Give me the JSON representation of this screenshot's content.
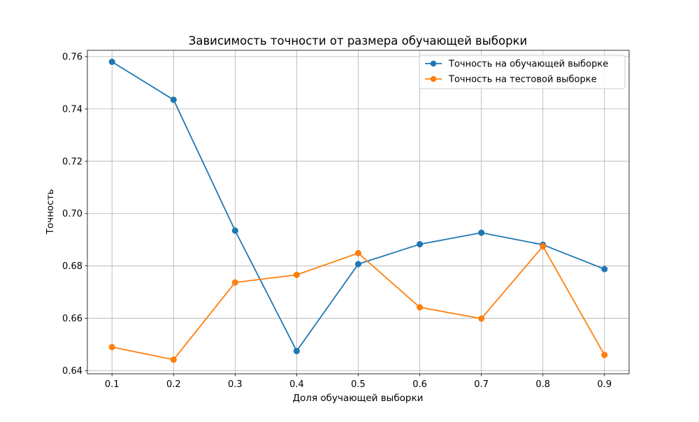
{
  "chart_data": {
    "type": "line",
    "title": "Зависимость точности от размера обучающей выборки",
    "xlabel": "Доля обучающей выборки",
    "ylabel": "Точность",
    "x": [
      0.1,
      0.2,
      0.3,
      0.4,
      0.5,
      0.6,
      0.7,
      0.8,
      0.9
    ],
    "xlim": [
      0.06,
      0.94
    ],
    "ylim": [
      0.6388,
      0.7624
    ],
    "xticks": [
      0.1,
      0.2,
      0.3,
      0.4,
      0.5,
      0.6,
      0.7,
      0.8,
      0.9
    ],
    "xtick_labels": [
      "0.1",
      "0.2",
      "0.3",
      "0.4",
      "0.5",
      "0.6",
      "0.7",
      "0.8",
      "0.9"
    ],
    "yticks": [
      0.64,
      0.66,
      0.68,
      0.7,
      0.72,
      0.74,
      0.76
    ],
    "ytick_labels": [
      "0.64",
      "0.66",
      "0.68",
      "0.70",
      "0.72",
      "0.74",
      "0.76"
    ],
    "grid": true,
    "legend_position": "top-right",
    "series": [
      {
        "name": "Точность на обучающей выборке",
        "color": "#1f77b4",
        "marker": "circle",
        "values": [
          0.758,
          0.7435,
          0.6935,
          0.6475,
          0.6807,
          0.6883,
          0.6927,
          0.6881,
          0.6788
        ]
      },
      {
        "name": "Точность на тестовой выборке",
        "color": "#ff7f0e",
        "marker": "circle",
        "values": [
          0.649,
          0.6442,
          0.6737,
          0.6766,
          0.6849,
          0.6642,
          0.6599,
          0.6875,
          0.646
        ]
      }
    ]
  }
}
